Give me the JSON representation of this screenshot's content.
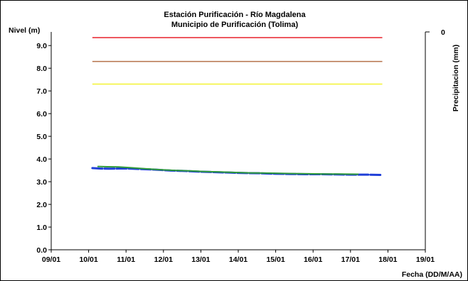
{
  "chart_data": {
    "type": "line",
    "title": "Estación Purificación - Río Magdalena",
    "subtitle": "Municipio de Purificación (Tolima)",
    "ylabel": "Nivel (m)",
    "y2label": "Precipitacion (mm)",
    "xlabel": "Fecha (DD/M/AA)",
    "ylim": [
      0.0,
      9.6
    ],
    "yticks": [
      "0.0",
      "1.0",
      "2.0",
      "3.0",
      "4.0",
      "5.0",
      "6.0",
      "7.0",
      "8.0",
      "9.0"
    ],
    "y2ticks": [
      "0"
    ],
    "xticks": [
      "09/01",
      "10/01",
      "11/01",
      "12/01",
      "13/01",
      "14/01",
      "15/01",
      "16/01",
      "17/01",
      "18/01",
      "19/01"
    ],
    "grid": false,
    "thresholds": [
      {
        "value": 9.35,
        "color": "#e8202a"
      },
      {
        "value": 8.3,
        "color": "#b5714a"
      },
      {
        "value": 7.3,
        "color": "#f2f230"
      }
    ],
    "series": [
      {
        "color": "#1f3fd8",
        "x": [
          10.1,
          10.3,
          10.55,
          10.8,
          11.05,
          11.4,
          11.8,
          12.2,
          12.6,
          13.0,
          13.4,
          13.8,
          14.2,
          14.6,
          15.0,
          15.4,
          15.8,
          16.2,
          16.6,
          17.0,
          17.4,
          17.85
        ],
        "values": [
          3.6,
          3.58,
          3.57,
          3.58,
          3.58,
          3.56,
          3.53,
          3.49,
          3.47,
          3.44,
          3.42,
          3.4,
          3.38,
          3.37,
          3.35,
          3.34,
          3.33,
          3.33,
          3.32,
          3.31,
          3.31,
          3.3
        ]
      },
      {
        "color": "#2f9a3a",
        "x": [
          10.25,
          10.5,
          10.8,
          11.1,
          11.5,
          11.9,
          12.3,
          12.7,
          13.1,
          13.5,
          13.9,
          14.3,
          14.7,
          15.1,
          15.5,
          15.9,
          16.3,
          16.7,
          17.2
        ],
        "values": [
          3.67,
          3.66,
          3.65,
          3.62,
          3.57,
          3.53,
          3.5,
          3.48,
          3.45,
          3.43,
          3.41,
          3.39,
          3.38,
          3.37,
          3.36,
          3.35,
          3.34,
          3.34,
          3.33
        ]
      }
    ]
  }
}
